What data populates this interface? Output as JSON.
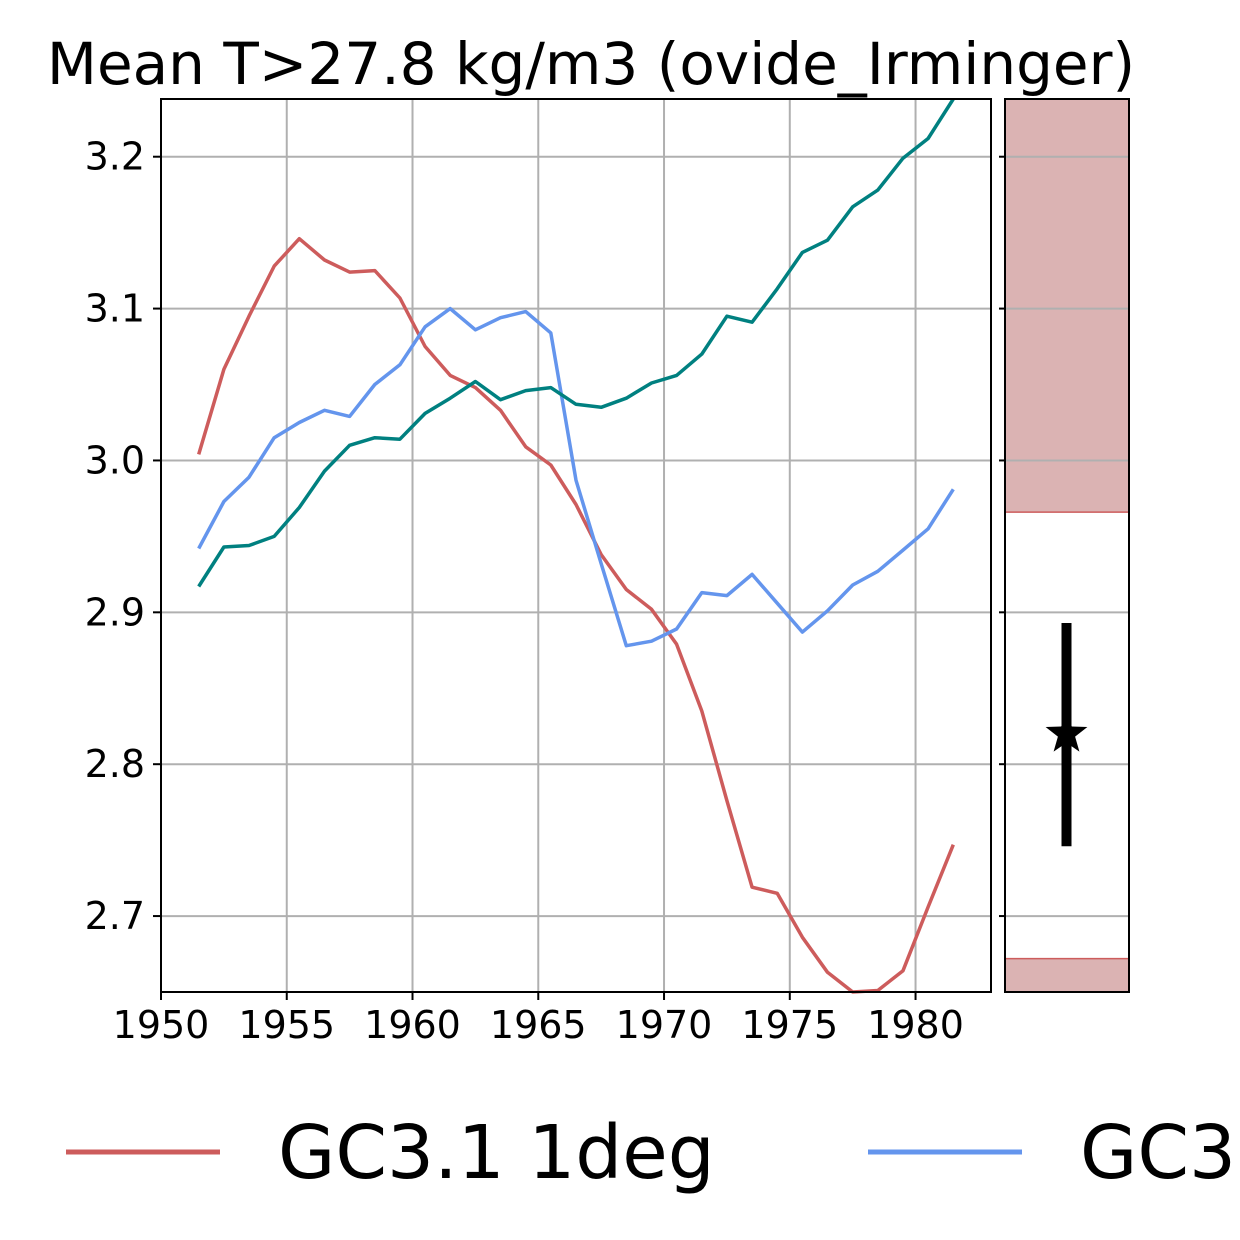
{
  "chart_data": {
    "type": "line",
    "title": "Mean T>27.8 kg/m3 (ovide_Irminger)",
    "xlabel": "",
    "ylabel": "",
    "xlim": [
      1950,
      1983
    ],
    "ylim": [
      2.65,
      3.238
    ],
    "xticks": [
      1950,
      1955,
      1960,
      1965,
      1970,
      1975,
      1980
    ],
    "yticks": [
      "2.7",
      "2.8",
      "2.9",
      "3.0",
      "3.1",
      "3.2"
    ],
    "grid": true,
    "legend_position": "bottom",
    "x": [
      1951.5,
      1952.5,
      1953.5,
      1954.5,
      1955.5,
      1956.5,
      1957.5,
      1958.5,
      1959.5,
      1960.5,
      1961.5,
      1962.5,
      1963.5,
      1964.5,
      1965.5,
      1966.5,
      1967.5,
      1968.5,
      1969.5,
      1970.5,
      1971.5,
      1972.5,
      1973.5,
      1974.5,
      1975.5,
      1976.5,
      1977.5,
      1978.5,
      1979.5,
      1980.5,
      1981.5
    ],
    "series": [
      {
        "name": "GC3.1 1deg",
        "color": "#cd5c5c",
        "values": [
          3.004,
          3.06,
          3.095,
          3.128,
          3.146,
          3.132,
          3.124,
          3.125,
          3.107,
          3.075,
          3.056,
          3.048,
          3.033,
          3.009,
          2.997,
          2.971,
          2.938,
          2.915,
          2.902,
          2.879,
          2.835,
          2.776,
          2.719,
          2.715,
          2.686,
          2.663,
          2.65,
          2.651,
          2.664,
          2.706,
          2.747
        ]
      },
      {
        "name": "GC3",
        "color": "#6495ed",
        "values": [
          2.942,
          2.973,
          2.989,
          3.015,
          3.025,
          3.033,
          3.029,
          3.05,
          3.063,
          3.088,
          3.1,
          3.086,
          3.094,
          3.098,
          3.084,
          2.987,
          2.932,
          2.878,
          2.881,
          2.889,
          2.913,
          2.911,
          2.925,
          2.906,
          2.887,
          2.901,
          2.918,
          2.927,
          2.941,
          2.955,
          2.981
        ]
      },
      {
        "color": "#008080",
        "values": [
          2.917,
          2.943,
          2.944,
          2.95,
          2.969,
          2.993,
          3.01,
          3.015,
          3.014,
          3.031,
          3.041,
          3.052,
          3.04,
          3.046,
          3.048,
          3.037,
          3.035,
          3.041,
          3.051,
          3.056,
          3.07,
          3.095,
          3.091,
          3.113,
          3.137,
          3.145,
          3.167,
          3.178,
          3.199,
          3.212,
          3.238
        ]
      }
    ],
    "side_panel": {
      "shade_color": "#dbb3b3",
      "shade_edge_color": "#cd5c5c",
      "shaded_ranges": [
        [
          2.966,
          3.238
        ],
        [
          2.65,
          2.672
        ]
      ],
      "observation": {
        "value": 2.82,
        "low": 2.746,
        "high": 2.893,
        "marker": "star-icon"
      }
    }
  }
}
